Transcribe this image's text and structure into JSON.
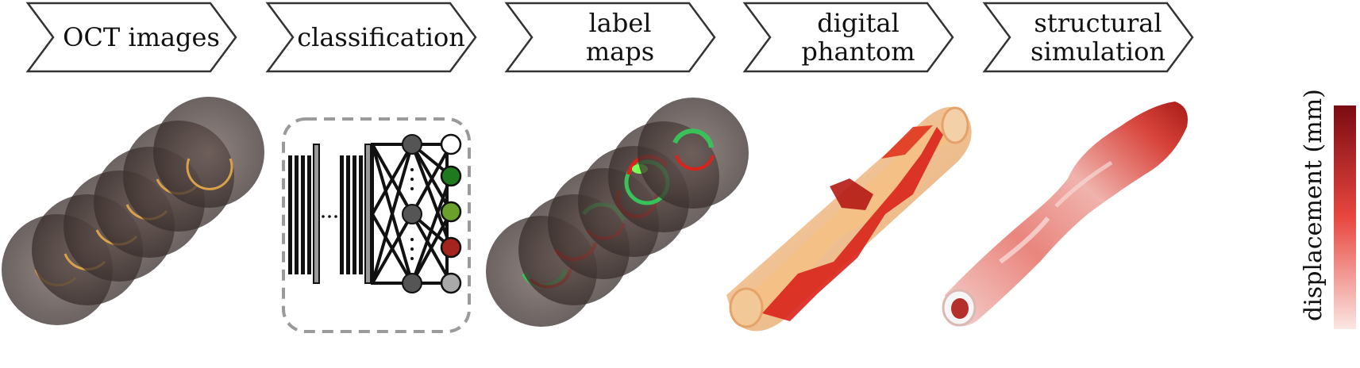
{
  "steps": [
    {
      "lines": [
        "OCT images"
      ]
    },
    {
      "lines": [
        "classification"
      ]
    },
    {
      "lines": [
        "label",
        "maps"
      ]
    },
    {
      "lines": [
        "digital",
        "phantom"
      ]
    },
    {
      "lines": [
        "structural",
        "simulation"
      ]
    }
  ],
  "colorbar": {
    "label": "displacement (mm)",
    "colors": {
      "high": "#7a0b12",
      "mid": "#e8473f",
      "low": "#fbe6e3"
    }
  },
  "classes": {
    "colors": [
      "#ffffff",
      "#1f7a1f",
      "#6aa02c",
      "#a3231f",
      "#a9a9a9"
    ]
  },
  "tissue_colors": {
    "lumen_wall": "#f4a460",
    "red": "#d9241c",
    "green": "#39c25a"
  }
}
